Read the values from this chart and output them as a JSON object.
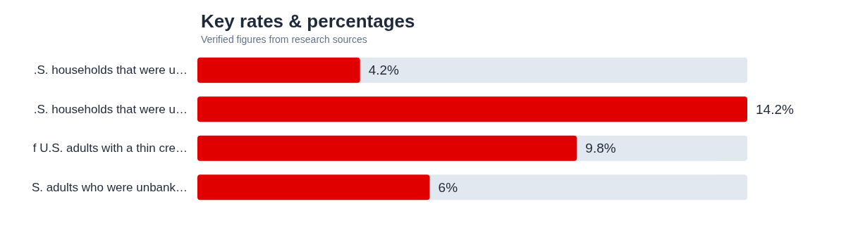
{
  "chart_data": {
    "type": "bar",
    "orientation": "horizontal",
    "title": "Key rates & percentages",
    "subtitle": "Verified figures from research sources",
    "categories": [
      ".S. households that were u…",
      ".S. households that were u…",
      "f U.S. adults with a thin cre…",
      "S. adults who were unbank…"
    ],
    "values": [
      4.2,
      14.2,
      9.8,
      6
    ],
    "value_labels": [
      "4.2%",
      "14.2%",
      "9.8%",
      "6%"
    ],
    "color": "#e10000"
  }
}
